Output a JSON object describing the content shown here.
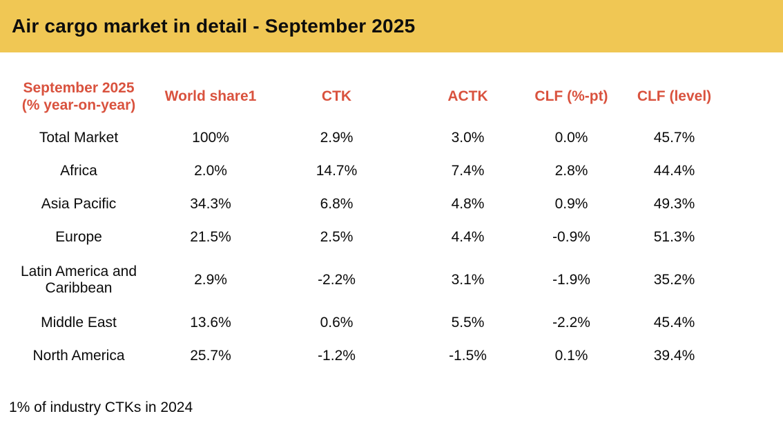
{
  "title_bar": {
    "title": "Air cargo market in detail - September 2025"
  },
  "colors": {
    "header_bar_background": "#F0C754",
    "accent_red": "#D9523E",
    "text_black": "#0a0a0a"
  },
  "table_header": {
    "col1_line1": "September 2025",
    "col1_line2": "(% year-on-year)",
    "col2": "World share1",
    "col3": "CTK",
    "col4": "ACTK",
    "col5": "CLF (%-pt)",
    "col6": "CLF (level)"
  },
  "footnote": "1% of industry CTKs in 2024",
  "chart_data": {
    "type": "table",
    "title": "Air cargo market in detail - September 2025",
    "columns": [
      "September 2025 (% year-on-year)",
      "World share1",
      "CTK",
      "ACTK",
      "CLF (%-pt)",
      "CLF (level)"
    ],
    "rows": [
      [
        "Total Market",
        "100%",
        "2.9%",
        "3.0%",
        "0.0%",
        "45.7%"
      ],
      [
        "Africa",
        "2.0%",
        "14.7%",
        "7.4%",
        "2.8%",
        "44.4%"
      ],
      [
        "Asia Pacific",
        "34.3%",
        "6.8%",
        "4.8%",
        "0.9%",
        "49.3%"
      ],
      [
        "Europe",
        "21.5%",
        "2.5%",
        "4.4%",
        "-0.9%",
        "51.3%"
      ],
      [
        "Latin America and Caribbean",
        "2.9%",
        "-2.2%",
        "3.1%",
        "-1.9%",
        "35.2%"
      ],
      [
        "Middle East",
        "13.6%",
        "0.6%",
        "5.5%",
        "-2.2%",
        "45.4%"
      ],
      [
        "North America",
        "25.7%",
        "-1.2%",
        "-1.5%",
        "0.1%",
        "39.4%"
      ]
    ],
    "row_label_display": {
      "latin_america_line1": "Latin America and",
      "latin_america_line2": "Caribbean"
    },
    "footnote": "1% of industry CTKs in 2024",
    "layout": {
      "grid": false,
      "header_text_color": "#D9523E",
      "title_bar_color": "#F0C754"
    }
  }
}
